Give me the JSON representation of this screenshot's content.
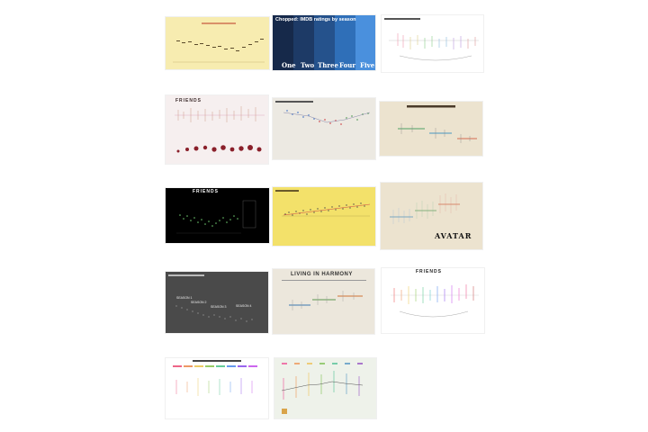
{
  "gallery": {
    "tiles": [
      {
        "id": "t1",
        "bg": "#f7ecb0",
        "title": "",
        "subtitle": "",
        "labels": []
      },
      {
        "id": "t2",
        "bg": "#1f3b63",
        "title": "Chopped: IMDB ratings by season",
        "subtitle": "",
        "labels": [
          "One",
          "Two",
          "Three",
          "Four",
          "Five"
        ]
      },
      {
        "id": "t3",
        "bg": "#ffffff",
        "title": "",
        "subtitle": "",
        "labels": []
      },
      {
        "id": "t4",
        "bg": "#f6efef",
        "title": "FRIENDS",
        "subtitle": "",
        "labels": []
      },
      {
        "id": "t5",
        "bg": "#ece9e2",
        "title": "",
        "subtitle": "",
        "labels": []
      },
      {
        "id": "t6",
        "bg": "#ece3cf",
        "title": "",
        "subtitle": "",
        "labels": []
      },
      {
        "id": "t7",
        "bg": "#000000",
        "title": "FRIENDS",
        "subtitle": "",
        "labels": []
      },
      {
        "id": "t8",
        "bg": "#f3e16a",
        "title": "",
        "subtitle": "",
        "labels": []
      },
      {
        "id": "t9",
        "bg": "#ece3cf",
        "title": "AVATAR",
        "subtitle": "",
        "labels": []
      },
      {
        "id": "t10",
        "bg": "#4a4a4a",
        "title": "",
        "subtitle": "",
        "labels": [
          "SEASON 1",
          "SEASON 2",
          "SEASON 3",
          "SEASON 4"
        ]
      },
      {
        "id": "t11",
        "bg": "#ece7dc",
        "title": "LIVING IN HARMONY",
        "subtitle": "",
        "labels": []
      },
      {
        "id": "t12",
        "bg": "#ffffff",
        "title": "FRIENDS",
        "subtitle": "",
        "labels": []
      },
      {
        "id": "t13",
        "bg": "#ffffff",
        "title": "",
        "subtitle": "",
        "labels": []
      },
      {
        "id": "t14",
        "bg": "#eef2ea",
        "title": "",
        "subtitle": "",
        "labels": []
      }
    ]
  }
}
